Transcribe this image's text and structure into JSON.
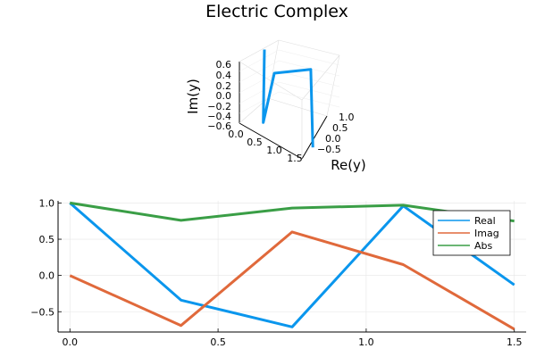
{
  "chart_data": [
    {
      "type": "line3d",
      "title": "Electric Complex",
      "xlabel": "Re(y)",
      "ylabel": "Im(y)",
      "xticks": [
        "0.0",
        "0.5",
        "1.0",
        "1.5"
      ],
      "zticks": [
        "0.6",
        "0.4",
        "0.2",
        "0.0",
        "−0.2",
        "−0.4",
        "−0.6"
      ],
      "yticks": [
        "1.0",
        "0.5",
        "0.0",
        "−0.5"
      ],
      "points": [
        {
          "t": 0.0,
          "re": 1.0,
          "im": 0.0
        },
        {
          "t": 0.375,
          "re": -0.34,
          "im": -0.69
        },
        {
          "t": 0.75,
          "re": -0.71,
          "im": 0.6
        },
        {
          "t": 1.125,
          "re": 0.96,
          "im": 0.15
        },
        {
          "t": 1.5,
          "re": -0.13,
          "im": -0.74
        }
      ],
      "color": "#0a96ed"
    },
    {
      "type": "line",
      "x": [
        0.0,
        0.375,
        0.75,
        1.125,
        1.5
      ],
      "xlim": [
        -0.04,
        1.54
      ],
      "ylim": [
        -0.78,
        1.03
      ],
      "xticks": [
        0.0,
        0.5,
        1.0,
        1.5
      ],
      "xtick_labels": [
        "0.0",
        "0.5",
        "1.0",
        "1.5"
      ],
      "yticks": [
        -0.5,
        0.0,
        0.5,
        1.0
      ],
      "ytick_labels": [
        "−0.5",
        "0.0",
        "0.5",
        "1.0"
      ],
      "grid": true,
      "legend_position": "top-right",
      "series": [
        {
          "name": "Real",
          "color": "#0a96ed",
          "values": [
            1.0,
            -0.34,
            -0.71,
            0.96,
            -0.13
          ]
        },
        {
          "name": "Imag",
          "color": "#e0693b",
          "values": [
            0.0,
            -0.69,
            0.6,
            0.15,
            -0.74
          ]
        },
        {
          "name": "Abs",
          "color": "#3a9e46",
          "values": [
            1.0,
            0.76,
            0.93,
            0.97,
            0.75
          ]
        }
      ]
    }
  ]
}
